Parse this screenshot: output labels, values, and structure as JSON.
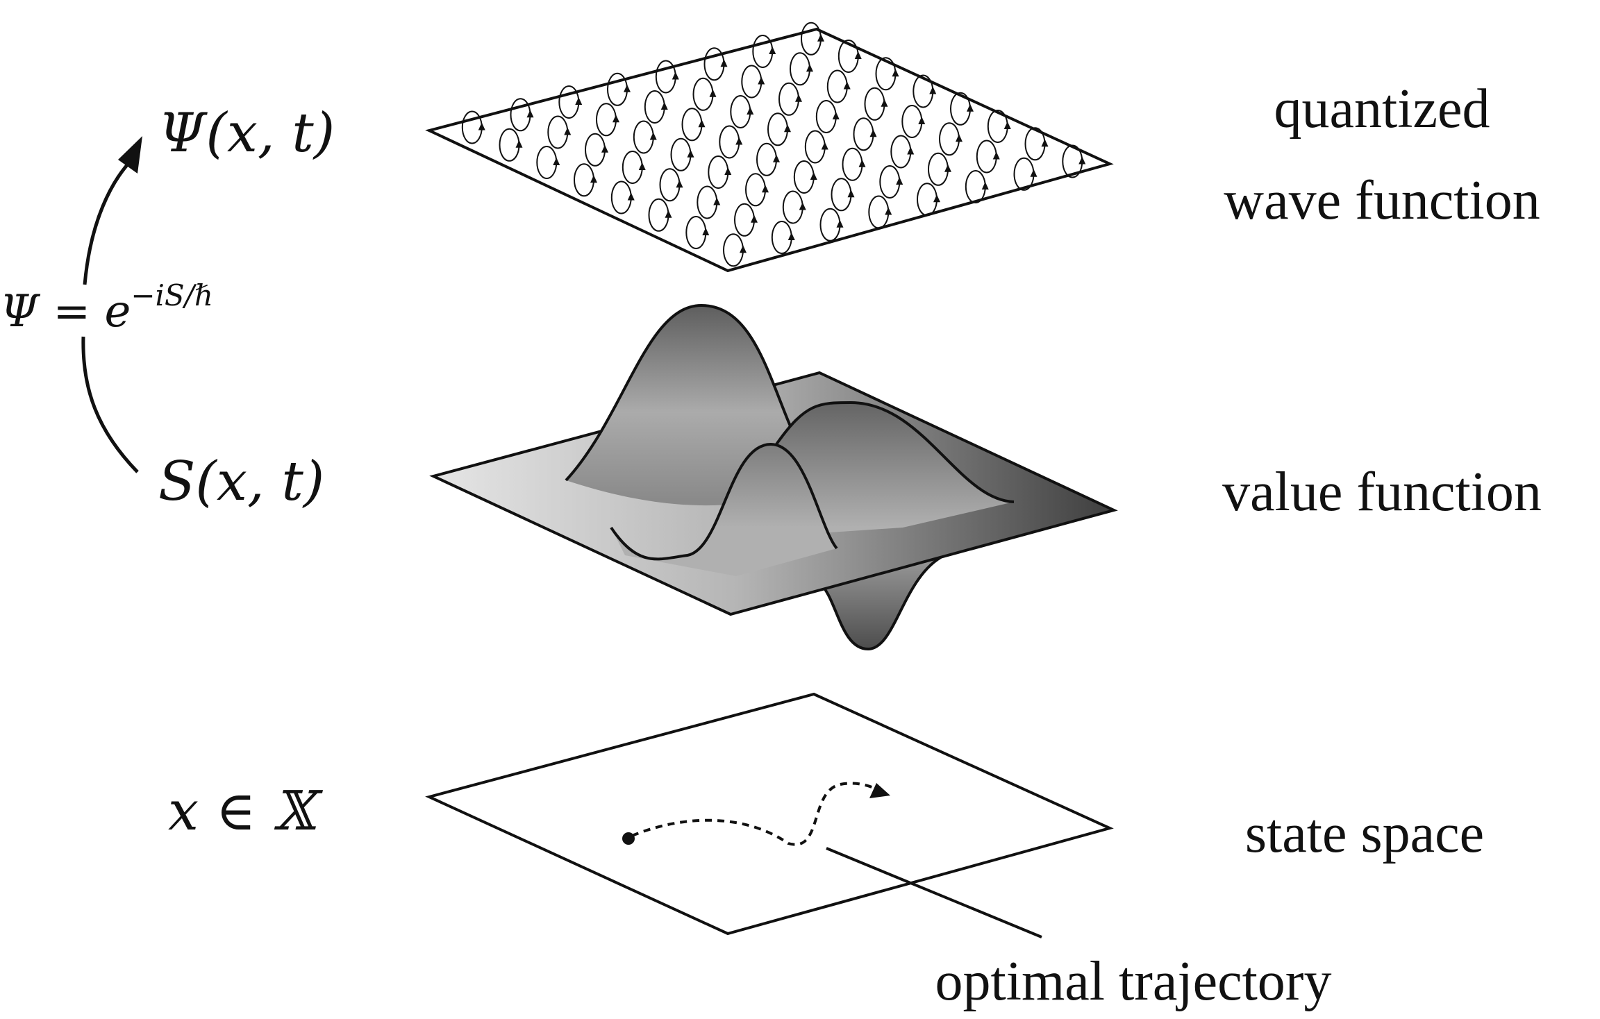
{
  "levels": {
    "wave": {
      "math_symbol": "Ψ(x, t)",
      "description_line1": "quantized",
      "description_line2": "wave function"
    },
    "value": {
      "math_symbol": "S(x, t)",
      "description": "value function"
    },
    "state": {
      "math_symbol": "x ∈ 𝕏",
      "description": "state space"
    }
  },
  "transform": {
    "lhs": "Ψ = e",
    "exponent": "−iS/ℏ"
  },
  "annotation": {
    "trajectory_label": "optimal trajectory"
  },
  "colors": {
    "stroke": "#111111",
    "surface_light": "#e6e6e6",
    "surface_dark": "#3f3f3f"
  }
}
